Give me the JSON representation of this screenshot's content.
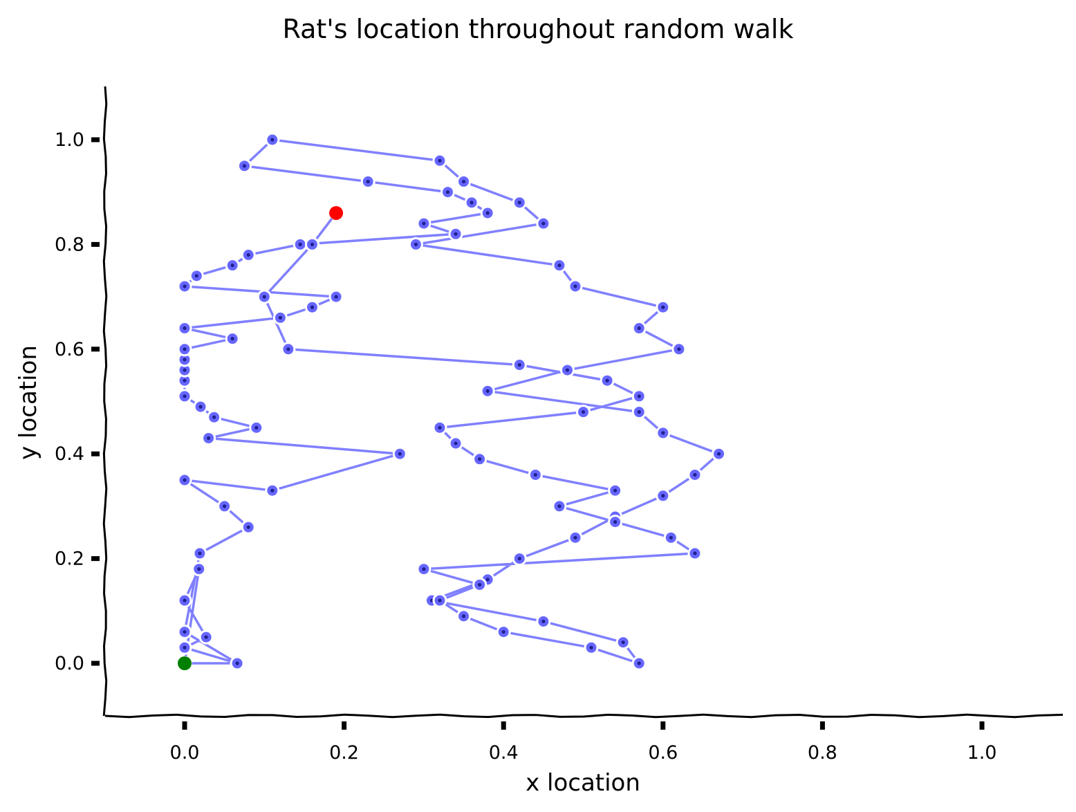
{
  "chart_data": {
    "type": "line",
    "title": "Rat's location throughout random walk",
    "xlabel": "x location",
    "ylabel": "y location",
    "xlim": [
      -0.1,
      1.1
    ],
    "ylim": [
      -0.1,
      1.1
    ],
    "xticks": [
      {
        "value": 0.0,
        "label": "0.0"
      },
      {
        "value": 0.2,
        "label": "0.2"
      },
      {
        "value": 0.4,
        "label": "0.4"
      },
      {
        "value": 0.6,
        "label": "0.6"
      },
      {
        "value": 0.8,
        "label": "0.8"
      },
      {
        "value": 1.0,
        "label": "1.0"
      }
    ],
    "yticks": [
      {
        "value": 0.0,
        "label": "0.0"
      },
      {
        "value": 0.2,
        "label": "0.2"
      },
      {
        "value": 0.4,
        "label": "0.4"
      },
      {
        "value": 0.6,
        "label": "0.6"
      },
      {
        "value": 0.8,
        "label": "0.8"
      },
      {
        "value": 1.0,
        "label": "1.0"
      }
    ],
    "grid": false,
    "legend": "none",
    "colors": {
      "path": "#8080ff",
      "marker_fill": "#6666ff",
      "marker_edge": "#ffffff",
      "marker_center": "#1f1f8f",
      "start": "#008000",
      "end": "#ff0000"
    },
    "series": [
      {
        "x": [
          0.0,
          0.066,
          0.0,
          0.027,
          0.0,
          0.018,
          0.0,
          0.066,
          0.0,
          0.019,
          0.08,
          0.05,
          0.0,
          0.11,
          0.27,
          0.03,
          0.09,
          0.037,
          0.02,
          0.0,
          0.0,
          0.0,
          0.0,
          0.0,
          0.06,
          0.0,
          0.12,
          0.16,
          0.19,
          0.0,
          0.015,
          0.06,
          0.08,
          0.145,
          0.34,
          0.3,
          0.38,
          0.36,
          0.33,
          0.23,
          0.075,
          0.11,
          0.32,
          0.35,
          0.42,
          0.45,
          0.29,
          0.47,
          0.49,
          0.6,
          0.57,
          0.62,
          0.48,
          0.38,
          0.57,
          0.6,
          0.67,
          0.64,
          0.6,
          0.54,
          0.49,
          0.42,
          0.38,
          0.31,
          0.45,
          0.55,
          0.57,
          0.51,
          0.4,
          0.35,
          0.32,
          0.37,
          0.3,
          0.64,
          0.61,
          0.54,
          0.47,
          0.54,
          0.44,
          0.37,
          0.34,
          0.32,
          0.5,
          0.57,
          0.53,
          0.42,
          0.13,
          0.1,
          0.16,
          0.19
        ],
        "y": [
          0.0,
          0.0,
          0.03,
          0.05,
          0.12,
          0.18,
          0.0,
          0.0,
          0.06,
          0.21,
          0.26,
          0.3,
          0.35,
          0.33,
          0.4,
          0.43,
          0.45,
          0.47,
          0.49,
          0.51,
          0.54,
          0.56,
          0.58,
          0.6,
          0.62,
          0.64,
          0.66,
          0.68,
          0.7,
          0.72,
          0.74,
          0.76,
          0.78,
          0.8,
          0.82,
          0.84,
          0.86,
          0.88,
          0.9,
          0.92,
          0.95,
          1.0,
          0.96,
          0.92,
          0.88,
          0.84,
          0.8,
          0.76,
          0.72,
          0.68,
          0.64,
          0.6,
          0.56,
          0.52,
          0.48,
          0.44,
          0.4,
          0.36,
          0.32,
          0.28,
          0.24,
          0.2,
          0.16,
          0.12,
          0.08,
          0.04,
          0.0,
          0.03,
          0.06,
          0.09,
          0.12,
          0.15,
          0.18,
          0.21,
          0.24,
          0.27,
          0.3,
          0.33,
          0.36,
          0.39,
          0.42,
          0.45,
          0.48,
          0.51,
          0.54,
          0.57,
          0.6,
          0.7,
          0.8,
          0.86
        ]
      }
    ],
    "start_point": {
      "x": 0.0,
      "y": 0.0
    },
    "end_point": {
      "x": 0.19,
      "y": 0.86
    }
  }
}
